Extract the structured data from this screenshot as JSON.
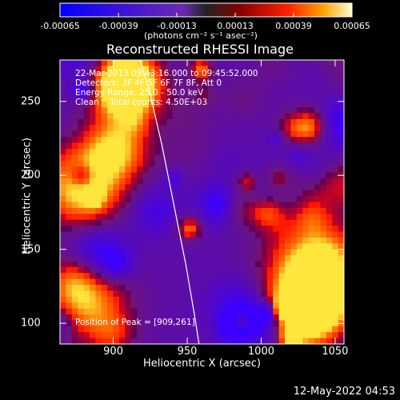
{
  "colorbar": {
    "ticks": [
      "-0.00065",
      "-0.00039",
      "-0.00013",
      "0.00013",
      "0.00039",
      "0.00065"
    ],
    "units": "(photons cm⁻² s⁻¹ asec⁻²)"
  },
  "chart_data": {
    "type": "heatmap",
    "title": "Reconstructed RHESSI Image",
    "xlabel": "Heliocentric X (arcsec)",
    "ylabel": "Heliocentric Y (arcsec)",
    "xlim": [
      864,
      1056
    ],
    "ylim": [
      86,
      278
    ],
    "zlim": [
      -0.00065,
      0.00065
    ],
    "xticks": [
      "900",
      "950",
      "1000",
      "1050"
    ],
    "yticks": [
      "100",
      "150",
      "200",
      "250"
    ],
    "annotations": [
      "22-Mar-2013 09:43:16.000 to 09:45:52.000",
      "Detectors: 3F 4F 5F 6F 7F 8F, Att 0",
      "Energy Range: 25.0 - 50.0 keV",
      "Clean    Total counts: 4.50E+03"
    ],
    "peak_label": "Position of Peak = [909,261]",
    "peak": [
      909,
      261
    ],
    "limb_curve": [
      [
        918,
        278
      ],
      [
        925,
        255
      ],
      [
        933,
        220
      ],
      [
        941,
        180
      ],
      [
        949,
        140
      ],
      [
        955,
        105
      ],
      [
        958,
        86
      ]
    ]
  },
  "timestamp": "12-May-2022 04:53"
}
